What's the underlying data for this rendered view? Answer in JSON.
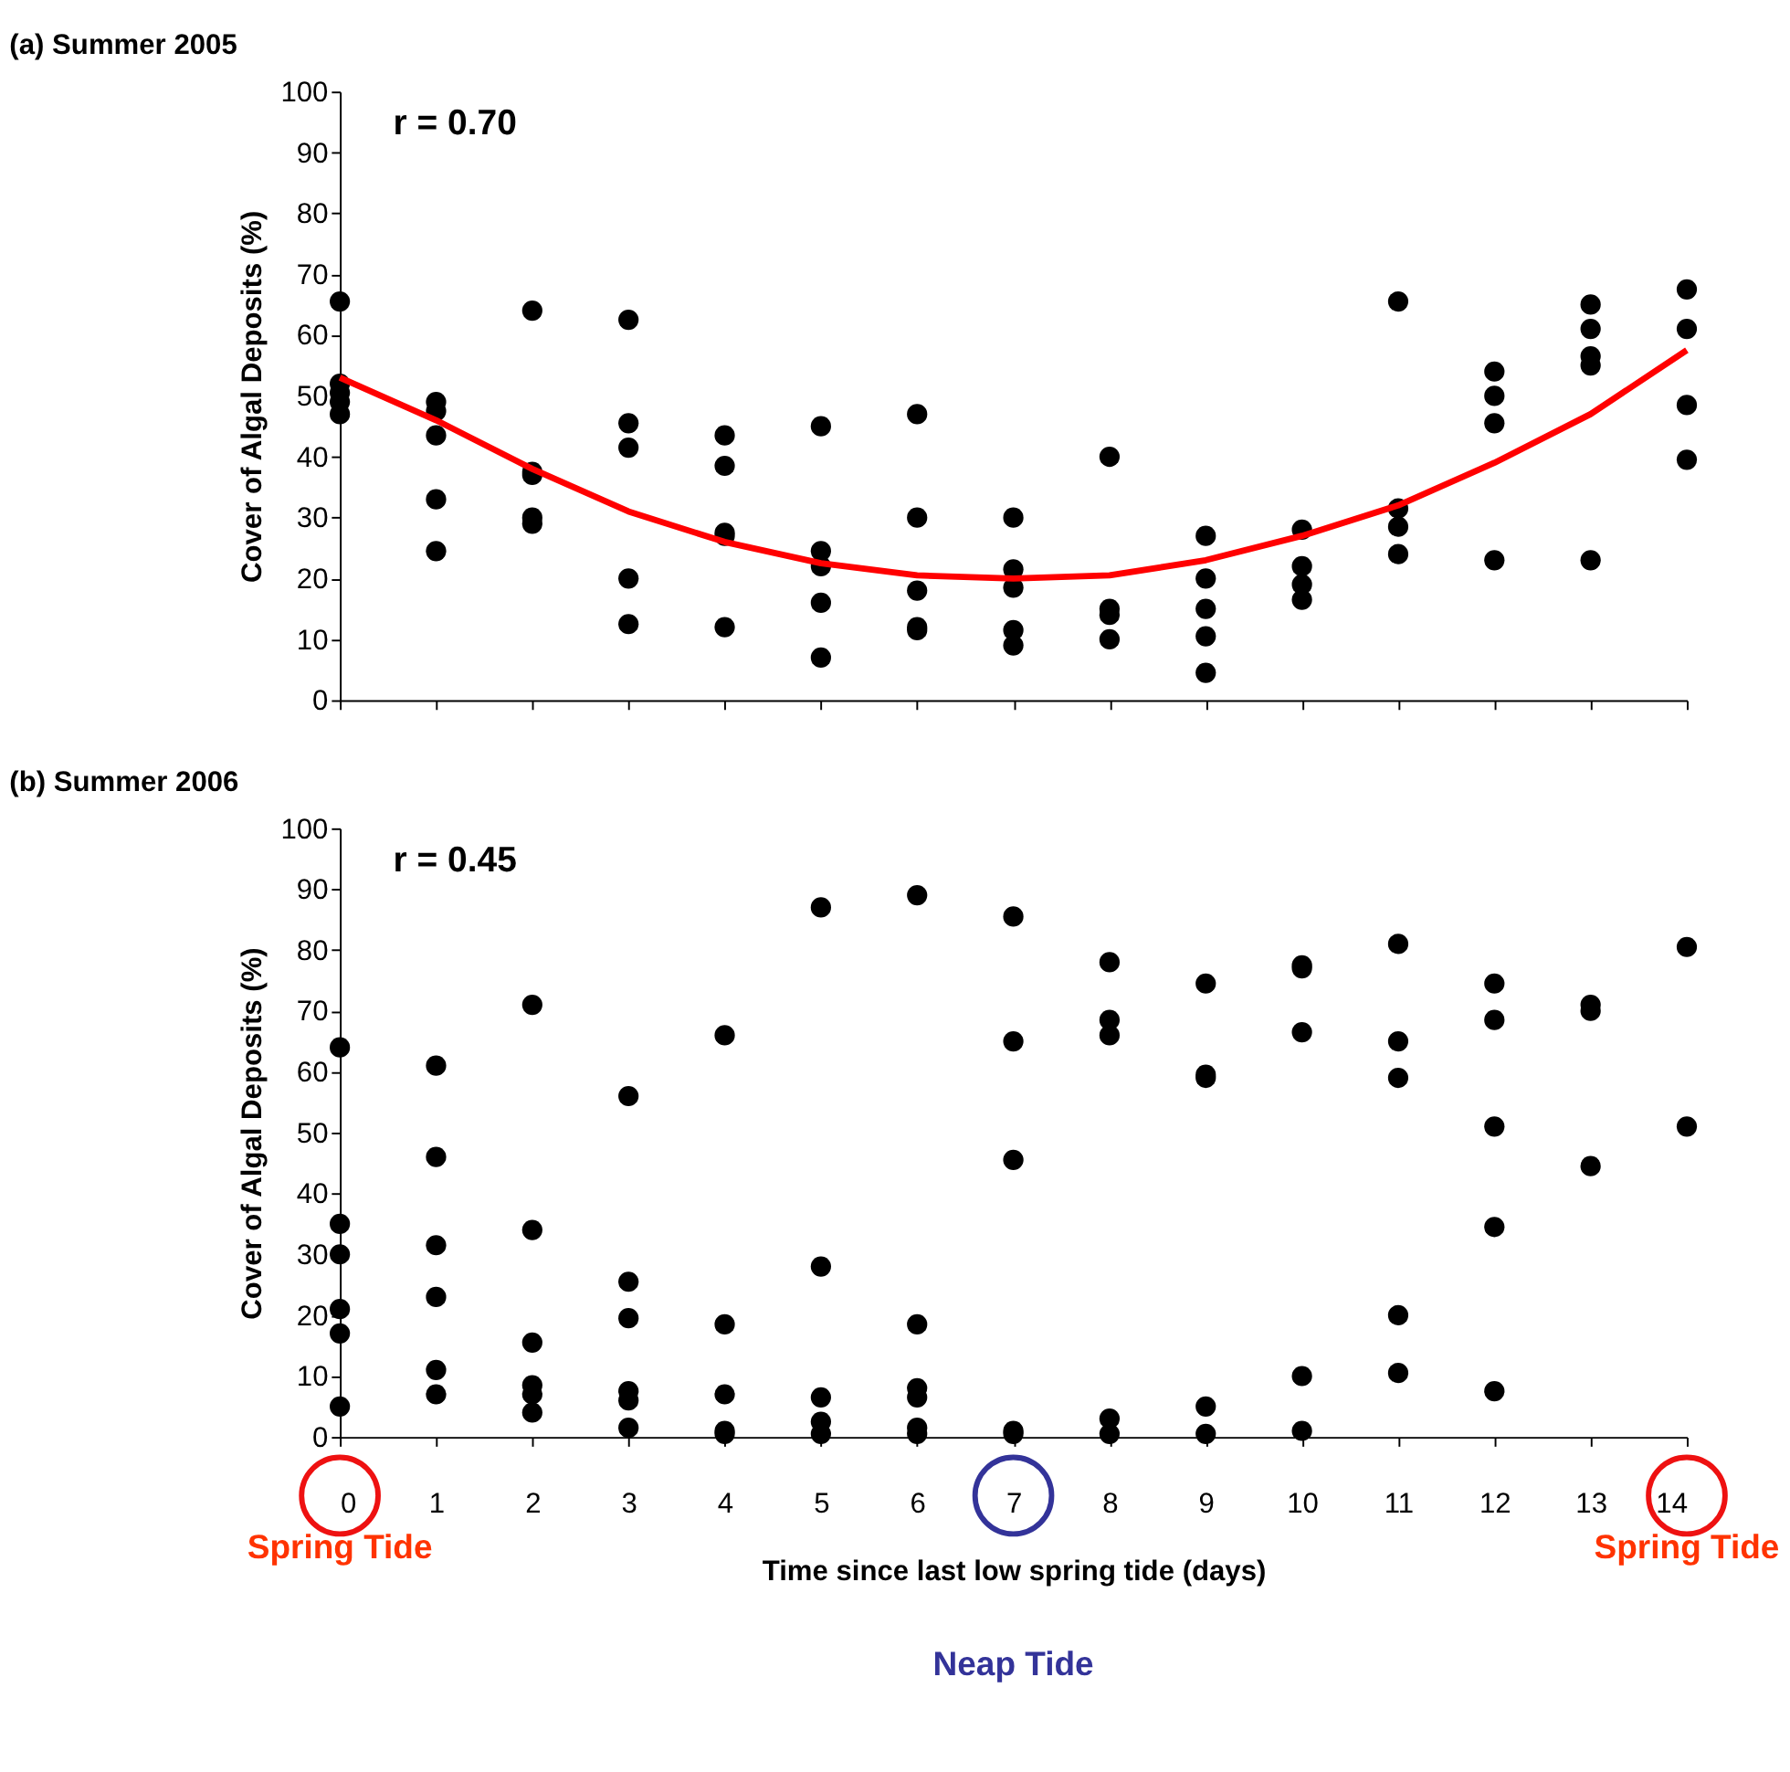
{
  "chart_data": [
    {
      "type": "scatter",
      "title": "(a) Summer 2005",
      "ylabel": "Cover of Algal Deposits (%)",
      "xlim": [
        0,
        14
      ],
      "xticks": [
        0,
        1,
        2,
        3,
        4,
        5,
        6,
        7,
        8,
        9,
        10,
        11,
        12,
        13,
        14
      ],
      "ylim": [
        0,
        100
      ],
      "yticks": [
        0,
        10,
        20,
        30,
        40,
        50,
        60,
        70,
        80,
        90,
        100
      ],
      "tick_labels": "y",
      "grid": false,
      "annotations": [
        "r = 0.70"
      ],
      "series": [
        {
          "type": "scatter",
          "marker": "circle",
          "color": "#000000",
          "x": [
            0,
            0,
            0,
            0,
            0,
            1,
            1,
            1,
            1,
            1,
            2,
            2,
            2,
            2,
            2,
            3,
            3,
            3,
            3,
            3,
            4,
            4,
            4,
            4,
            4,
            5,
            5,
            5,
            5,
            5,
            6,
            6,
            6,
            6,
            6,
            7,
            7,
            7,
            7,
            7,
            8,
            8,
            8,
            8,
            9,
            9,
            9,
            9,
            9,
            10,
            10,
            10,
            10,
            11,
            11,
            11,
            11,
            12,
            12,
            12,
            12,
            13,
            13,
            13,
            13,
            13,
            14,
            14,
            14,
            14
          ],
          "values": [
            65.5,
            52,
            50.5,
            49,
            47,
            49,
            47.5,
            43.5,
            33,
            24.5,
            64,
            37.5,
            37,
            30,
            29,
            62.5,
            45.5,
            41.5,
            20,
            12.5,
            43.5,
            38.5,
            27.5,
            27,
            12,
            45,
            24.5,
            22,
            16,
            7,
            47,
            30,
            18,
            12,
            11.5,
            30,
            21.5,
            18.5,
            11.5,
            9,
            40,
            15,
            14,
            10,
            27,
            20,
            15,
            10.5,
            4.5,
            28,
            22,
            19,
            16.5,
            65.5,
            31.5,
            28.5,
            24,
            54,
            50,
            45.5,
            23,
            65,
            61,
            56.5,
            55,
            23,
            67.5,
            61,
            48.5,
            39.5
          ]
        },
        {
          "type": "line",
          "marker": "none",
          "color": "#ff0000",
          "line_style": "solid",
          "x": [
            0,
            1,
            2,
            3,
            4,
            5,
            6,
            7,
            8,
            9,
            10,
            11,
            12,
            13,
            14
          ],
          "values": [
            53,
            46,
            38,
            31,
            26,
            22.5,
            20.5,
            20,
            20.5,
            23,
            27,
            32,
            39,
            47,
            57.5
          ]
        }
      ]
    },
    {
      "type": "scatter",
      "title": "(b) Summer 2006",
      "ylabel": "Cover of Algal Deposits (%)",
      "xlabel": "Time since last low spring tide (days)",
      "xlim": [
        0,
        14
      ],
      "xticks": [
        0,
        1,
        2,
        3,
        4,
        5,
        6,
        7,
        8,
        9,
        10,
        11,
        12,
        13,
        14
      ],
      "ylim": [
        0,
        100
      ],
      "yticks": [
        0,
        10,
        20,
        30,
        40,
        50,
        60,
        70,
        80,
        90,
        100
      ],
      "grid": false,
      "annotations": [
        "r = 0.45",
        "Spring Tide",
        "Neap Tide",
        "Spring Tide"
      ],
      "series": [
        {
          "type": "scatter",
          "marker": "circle",
          "color": "#000000",
          "x": [
            0,
            0,
            0,
            0,
            0,
            0,
            1,
            1,
            1,
            1,
            1,
            1,
            2,
            2,
            2,
            2,
            2,
            2,
            3,
            3,
            3,
            3,
            3,
            3,
            4,
            4,
            4,
            4,
            4,
            5,
            5,
            5,
            5,
            5,
            6,
            6,
            6,
            6,
            6,
            6,
            7,
            7,
            7,
            7,
            7,
            8,
            8,
            8,
            8,
            8,
            9,
            9,
            9,
            9,
            9,
            10,
            10,
            10,
            10,
            10,
            11,
            11,
            11,
            11,
            11,
            12,
            12,
            12,
            12,
            12,
            13,
            13,
            13,
            14,
            14
          ],
          "values": [
            64,
            35,
            30,
            21,
            17,
            5,
            61,
            46,
            31.5,
            23,
            11,
            7,
            71,
            34,
            15.5,
            8.5,
            7,
            4,
            56,
            25.5,
            19.5,
            7.5,
            6,
            1.5,
            66,
            18.5,
            7,
            1,
            0.5,
            87,
            28,
            6.5,
            2.5,
            0.5,
            89,
            18.5,
            8,
            6.5,
            1.5,
            0.5,
            85.5,
            65,
            45.5,
            1,
            0.5,
            78,
            68.5,
            66,
            3,
            0.5,
            74.5,
            59.5,
            59,
            5,
            0.5,
            77.5,
            77,
            66.5,
            10,
            1,
            81,
            65,
            59,
            20,
            10.5,
            74.5,
            68.5,
            51,
            34.5,
            7.5,
            71,
            70,
            44.5,
            80.5,
            51
          ]
        }
      ]
    }
  ]
}
